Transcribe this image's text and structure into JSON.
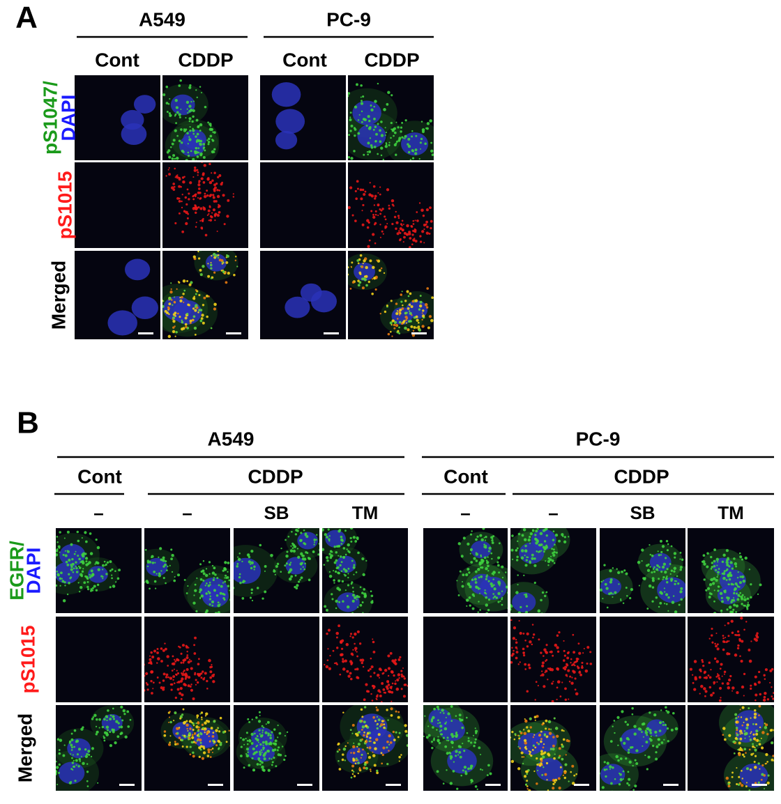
{
  "panels": [
    {
      "label": "A",
      "groups": [
        {
          "title": "A549",
          "conditions": [
            {
              "name": "Cont"
            },
            {
              "name": "CDDP"
            }
          ]
        },
        {
          "title": "PC-9",
          "conditions": [
            {
              "name": "Cont"
            },
            {
              "name": "CDDP"
            }
          ]
        }
      ],
      "rows": [
        {
          "parts": [
            {
              "text": "pS1047/",
              "color": "#1a9a1a"
            },
            {
              "text": "DAPI",
              "color": "#1a1aff"
            }
          ]
        },
        {
          "parts": [
            {
              "text": "pS1015",
              "color": "#ff1a1a"
            }
          ]
        },
        {
          "parts": [
            {
              "text": "Merged",
              "color": "#000000"
            }
          ]
        }
      ]
    },
    {
      "label": "B",
      "groups": [
        {
          "title": "A549",
          "conditions": [
            {
              "name": "Cont",
              "treatments": [
                "–"
              ]
            },
            {
              "name": "CDDP",
              "treatments": [
                "–",
                "SB",
                "TM"
              ]
            }
          ]
        },
        {
          "title": "PC-9",
          "conditions": [
            {
              "name": "Cont",
              "treatments": [
                "–"
              ]
            },
            {
              "name": "CDDP",
              "treatments": [
                "–",
                "SB",
                "TM"
              ]
            }
          ]
        }
      ],
      "rows": [
        {
          "parts": [
            {
              "text": "EGFR/",
              "color": "#1a9a1a"
            },
            {
              "text": "DAPI",
              "color": "#1a1aff"
            }
          ]
        },
        {
          "parts": [
            {
              "text": "pS1015",
              "color": "#ff1a1a"
            }
          ]
        },
        {
          "parts": [
            {
              "text": "Merged",
              "color": "#000000"
            }
          ]
        }
      ]
    }
  ]
}
